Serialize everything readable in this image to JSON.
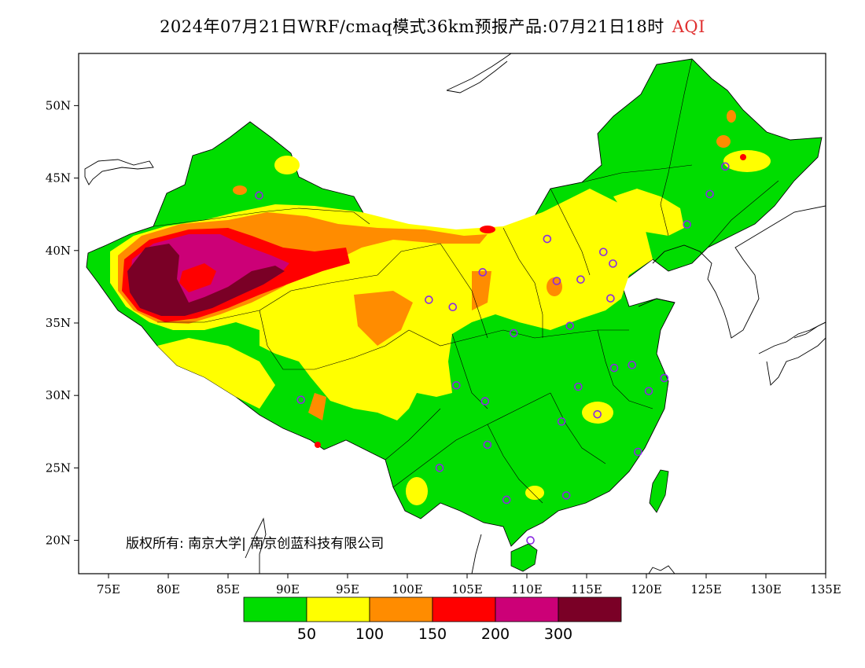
{
  "header": {
    "title": "2024年07月21日WRF/cmaq模式36km预报产品:07月21日18时",
    "product": "AQI",
    "product_color": "#e03030"
  },
  "axes": {
    "x_ticks": [
      "75E",
      "80E",
      "85E",
      "90E",
      "95E",
      "100E",
      "105E",
      "110E",
      "115E",
      "120E",
      "125E",
      "130E",
      "135E"
    ],
    "y_ticks": [
      "50N",
      "45N",
      "40N",
      "35N",
      "30N",
      "25N",
      "20N"
    ]
  },
  "copyright": "版权所有: 南京大学| 南京创蓝科技有限公司",
  "legend": {
    "colors": [
      "#00dd00",
      "#ffff00",
      "#ff8c00",
      "#ff0000",
      "#cc0077",
      "#7a0026"
    ],
    "labels": [
      "50",
      "100",
      "150",
      "200",
      "300"
    ]
  },
  "map_colors": {
    "good": "#00dd00",
    "moderate": "#ffff00",
    "unhealthy_sensitive": "#ff8c00",
    "unhealthy": "#ff0000",
    "very_unhealthy": "#cc0077",
    "hazardous": "#7a0026",
    "station_ring": "#8a2be2"
  },
  "stations": [
    {
      "lon": 87.6,
      "lat": 43.8
    },
    {
      "lon": 91.1,
      "lat": 29.7
    },
    {
      "lon": 101.8,
      "lat": 36.6
    },
    {
      "lon": 103.8,
      "lat": 36.1
    },
    {
      "lon": 106.3,
      "lat": 38.5
    },
    {
      "lon": 111.7,
      "lat": 40.8
    },
    {
      "lon": 112.5,
      "lat": 37.9
    },
    {
      "lon": 114.5,
      "lat": 38.0
    },
    {
      "lon": 116.4,
      "lat": 39.9
    },
    {
      "lon": 117.2,
      "lat": 39.1
    },
    {
      "lon": 117.0,
      "lat": 36.7
    },
    {
      "lon": 113.6,
      "lat": 34.8
    },
    {
      "lon": 108.9,
      "lat": 34.3
    },
    {
      "lon": 104.1,
      "lat": 30.7
    },
    {
      "lon": 106.5,
      "lat": 29.6
    },
    {
      "lon": 106.7,
      "lat": 26.6
    },
    {
      "lon": 102.7,
      "lat": 25.0
    },
    {
      "lon": 108.3,
      "lat": 22.8
    },
    {
      "lon": 113.3,
      "lat": 23.1
    },
    {
      "lon": 110.3,
      "lat": 20.0
    },
    {
      "lon": 112.9,
      "lat": 28.2
    },
    {
      "lon": 115.9,
      "lat": 28.7
    },
    {
      "lon": 114.3,
      "lat": 30.6
    },
    {
      "lon": 117.3,
      "lat": 31.9
    },
    {
      "lon": 118.8,
      "lat": 32.1
    },
    {
      "lon": 120.2,
      "lat": 30.3
    },
    {
      "lon": 121.5,
      "lat": 31.2
    },
    {
      "lon": 119.3,
      "lat": 26.1
    },
    {
      "lon": 123.4,
      "lat": 41.8
    },
    {
      "lon": 125.3,
      "lat": 43.9
    },
    {
      "lon": 126.6,
      "lat": 45.8
    }
  ]
}
